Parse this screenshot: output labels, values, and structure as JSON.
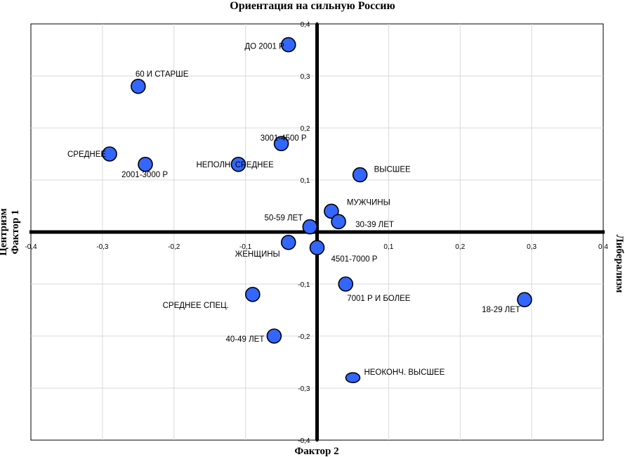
{
  "chart_data": {
    "type": "scatter",
    "title": "Ориентация на сильную Россию",
    "xlabel": "Фактор 2",
    "ylabel": "Фактор 1",
    "left_pole": "Центризм",
    "right_pole": "Либерализм",
    "xlim": [
      -0.4,
      0.4
    ],
    "ylim": [
      -0.4,
      0.4
    ],
    "xticks": [
      -0.4,
      -0.3,
      -0.2,
      -0.1,
      0,
      0.1,
      0.2,
      0.3,
      0.4
    ],
    "yticks": [
      -0.4,
      -0.3,
      -0.2,
      -0.1,
      0.1,
      0.2,
      0.3,
      0.4
    ],
    "xtick_labels": [
      "-0,4",
      "-0,3",
      "-0,2",
      "-0,1",
      "0",
      "0,1",
      "0,2",
      "0,3",
      "0,4"
    ],
    "ytick_labels": [
      "-0,4",
      "-0,3",
      "-0,2",
      "-0,1",
      "0,1",
      "0,2",
      "0,3",
      "0,4"
    ],
    "point_color": "#3366ff",
    "points": [
      {
        "label": "ДО 2001 Р",
        "x": -0.04,
        "y": 0.36
      },
      {
        "label": "60 И СТАРШЕ",
        "x": -0.25,
        "y": 0.28
      },
      {
        "label": "3001-4500 Р",
        "x": -0.05,
        "y": 0.17
      },
      {
        "label": "СРЕДНЕЕ",
        "x": -0.29,
        "y": 0.15
      },
      {
        "label": "2001-3000 Р",
        "x": -0.24,
        "y": 0.13
      },
      {
        "label": "НЕПОЛН. СРЕДНЕЕ",
        "x": -0.11,
        "y": 0.13
      },
      {
        "label": "ВЫСШЕЕ",
        "x": 0.06,
        "y": 0.11
      },
      {
        "label": "МУЖЧИНЫ",
        "x": 0.02,
        "y": 0.04
      },
      {
        "label": "50-59 ЛЕТ",
        "x": -0.01,
        "y": 0.01
      },
      {
        "label": "30-39 ЛЕТ",
        "x": 0.03,
        "y": 0.02
      },
      {
        "label": "ЖЕНЩИНЫ",
        "x": -0.04,
        "y": -0.02
      },
      {
        "label": "4501-7000 Р",
        "x": 0.0,
        "y": -0.03
      },
      {
        "label": "7001 Р И БОЛЕЕ",
        "x": 0.04,
        "y": -0.1
      },
      {
        "label": "18-29 ЛЕТ",
        "x": 0.29,
        "y": -0.13
      },
      {
        "label": "СРЕДНЕЕ СПЕЦ.",
        "x": -0.09,
        "y": -0.12
      },
      {
        "label": "40-49 ЛЕТ",
        "x": -0.06,
        "y": -0.2
      },
      {
        "label": "НЕОКОНЧ. ВЫСШЕЕ",
        "x": 0.05,
        "y": -0.28
      }
    ]
  }
}
